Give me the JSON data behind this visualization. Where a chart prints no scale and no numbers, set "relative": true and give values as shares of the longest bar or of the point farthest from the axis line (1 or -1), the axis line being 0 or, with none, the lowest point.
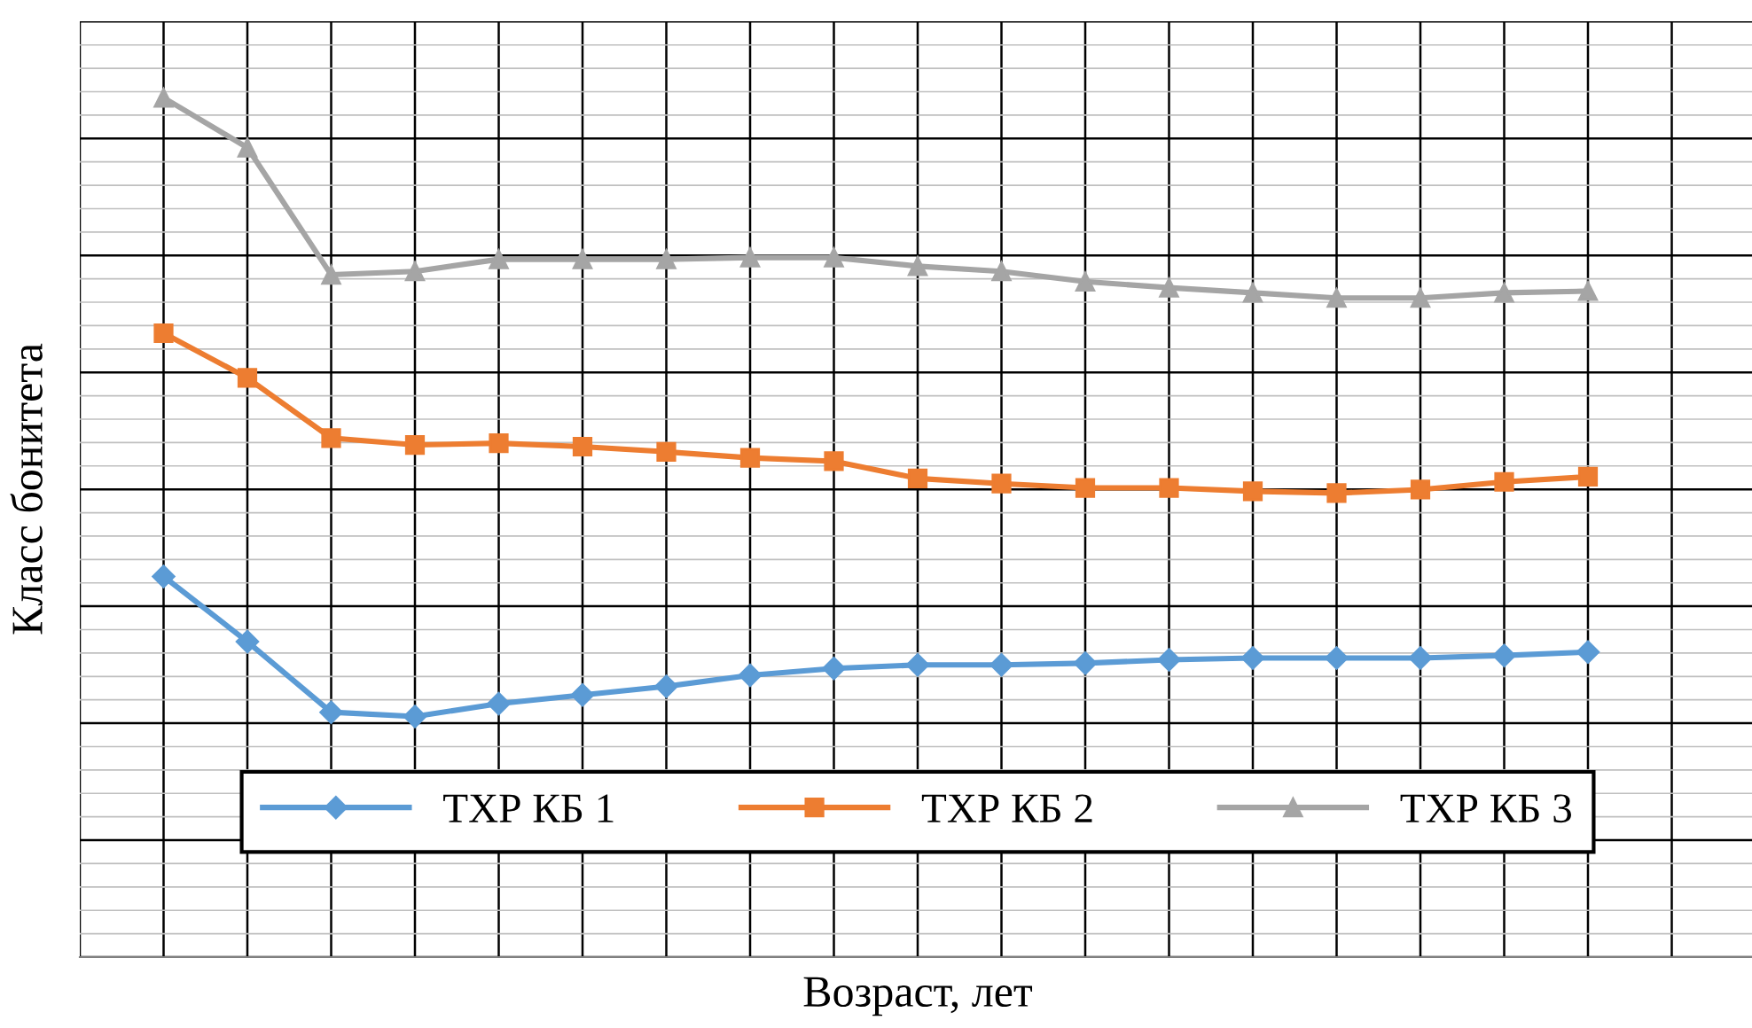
{
  "chart_data": {
    "type": "line",
    "xlabel": "Возраст, лет",
    "ylabel": "Класс бонитета",
    "relative": true,
    "grid": true,
    "legend": "bottom",
    "categories": [
      null,
      null,
      null,
      null,
      null,
      null,
      null,
      null,
      null,
      null,
      null,
      null,
      null,
      null,
      null,
      null,
      null,
      null
    ],
    "series": [
      {
        "name": "ТХР КБ 1",
        "color": "#5b9bd5",
        "marker": "diamond",
        "values": [
          0.443,
          0.367,
          0.285,
          0.28,
          0.295,
          0.305,
          0.315,
          0.328,
          0.336,
          0.34,
          0.34,
          0.342,
          0.346,
          0.348,
          0.348,
          0.348,
          0.351,
          0.355
        ]
      },
      {
        "name": "ТХР КБ 2",
        "color": "#ed7d31",
        "marker": "square",
        "values": [
          0.726,
          0.674,
          0.604,
          0.596,
          0.598,
          0.594,
          0.588,
          0.581,
          0.577,
          0.557,
          0.551,
          0.546,
          0.546,
          0.542,
          0.54,
          0.544,
          0.553,
          0.559
        ]
      },
      {
        "name": "ТХР КБ 3",
        "color": "#a5a5a5",
        "marker": "triangle",
        "values": [
          1.0,
          0.942,
          0.794,
          0.798,
          0.812,
          0.812,
          0.812,
          0.814,
          0.814,
          0.804,
          0.798,
          0.786,
          0.779,
          0.773,
          0.767,
          0.767,
          0.773,
          0.775
        ]
      }
    ]
  }
}
